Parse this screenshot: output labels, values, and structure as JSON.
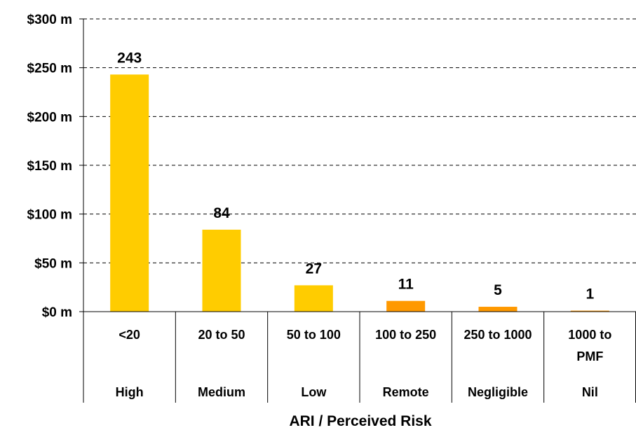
{
  "chart_data": {
    "type": "bar",
    "categories": [
      "<20",
      "20 to 50",
      "50 to 100",
      "100 to 250",
      "250 to 1000",
      "1000 to PMF"
    ],
    "category_lines": [
      [
        "<20"
      ],
      [
        "20 to 50"
      ],
      [
        "50 to 100"
      ],
      [
        "100 to 250"
      ],
      [
        "250 to 1000"
      ],
      [
        "1000 to",
        "PMF"
      ]
    ],
    "risk_levels": [
      "High",
      "Medium",
      "Low",
      "Remote",
      "Negligible",
      "Nil"
    ],
    "values": [
      243,
      84,
      27,
      11,
      5,
      1
    ],
    "data_labels": [
      "243",
      "84",
      "27",
      "11",
      "5",
      "1"
    ],
    "bar_colors": [
      "#FFCC00",
      "#FFCC00",
      "#FFCC00",
      "#FF9900",
      "#FF9900",
      "#FF9900"
    ],
    "ylim": [
      0,
      300
    ],
    "yticks": [
      0,
      50,
      100,
      150,
      200,
      250,
      300
    ],
    "ytick_labels": [
      "$0 m",
      "$50 m",
      "$100 m",
      "$150 m",
      "$200 m",
      "$250 m",
      "$300 m"
    ],
    "xlabel": "ARI / Perceived Risk",
    "ylabel": "",
    "title": "",
    "grid": "horizontal dashed",
    "legend": "none"
  }
}
